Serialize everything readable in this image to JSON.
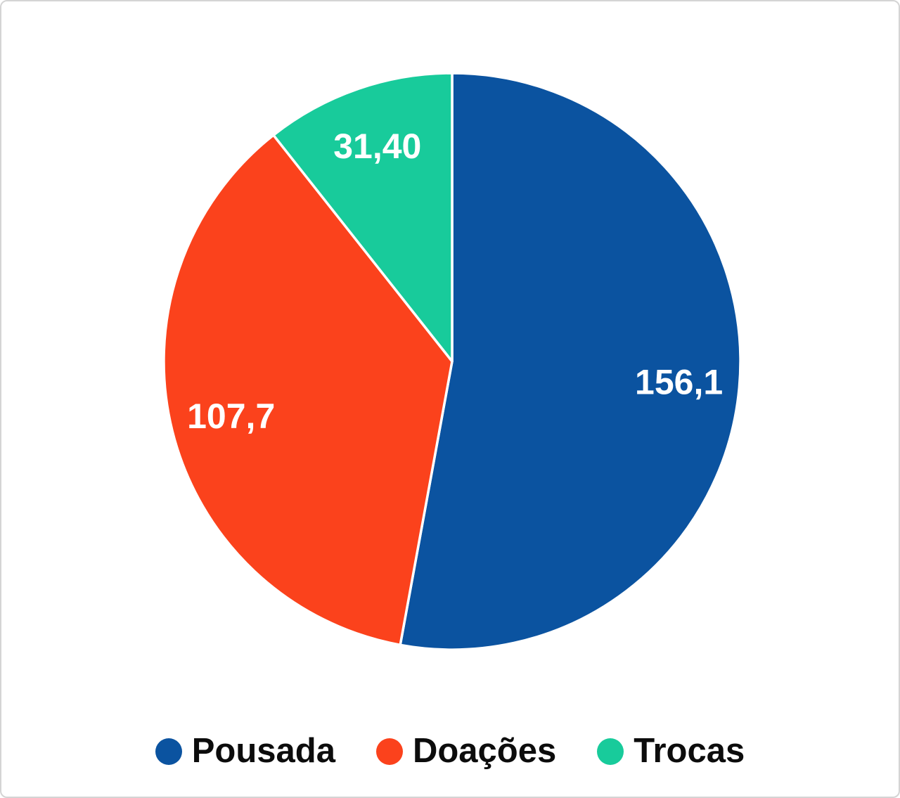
{
  "page": {
    "background_color": "#ffffff",
    "border_color": "#d4d4d4"
  },
  "chart_data": {
    "type": "pie",
    "title": "",
    "start_angle_deg": 0,
    "direction": "clockwise",
    "legend_position": "bottom",
    "data_label_color": "#ffffff",
    "separator_color": "#ffffff",
    "slices": [
      {
        "id": "pousada",
        "name": "Pousada",
        "value": 156.1,
        "label": "156,1",
        "color": "#0b53a0"
      },
      {
        "id": "doacoes",
        "name": "Doações",
        "value": 107.7,
        "label": "107,7",
        "color": "#fb421c"
      },
      {
        "id": "trocas",
        "name": "Trocas",
        "value": 31.4,
        "label": "31,40",
        "color": "#18cb9b"
      }
    ]
  }
}
